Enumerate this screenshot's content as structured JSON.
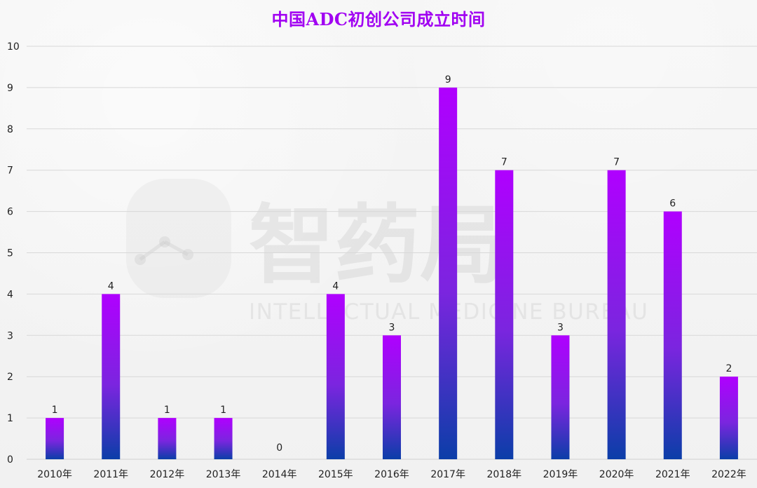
{
  "chart_data": {
    "type": "bar",
    "title": "中国ADC初创公司成立时间",
    "categories": [
      "2010年",
      "2011年",
      "2012年",
      "2013年",
      "2014年",
      "2015年",
      "2016年",
      "2017年",
      "2018年",
      "2019年",
      "2020年",
      "2021年",
      "2022年"
    ],
    "values": [
      1,
      4,
      1,
      1,
      0,
      4,
      3,
      9,
      7,
      3,
      7,
      6,
      2
    ],
    "ylim": [
      0,
      10
    ],
    "yticks": [
      0,
      1,
      2,
      3,
      4,
      5,
      6,
      7,
      8,
      9,
      10
    ],
    "grid": true,
    "colors": {
      "title": "#a100f2",
      "bar_top": "#b000ff",
      "bar_bottom": "#0b3ea8",
      "grid": "#d8d8d8",
      "text": "#222222",
      "watermark": "#a0a0a0"
    }
  },
  "watermark": {
    "chinese": "智药局",
    "english": "INTELLECTUAL MEDICINE BUREAU"
  }
}
